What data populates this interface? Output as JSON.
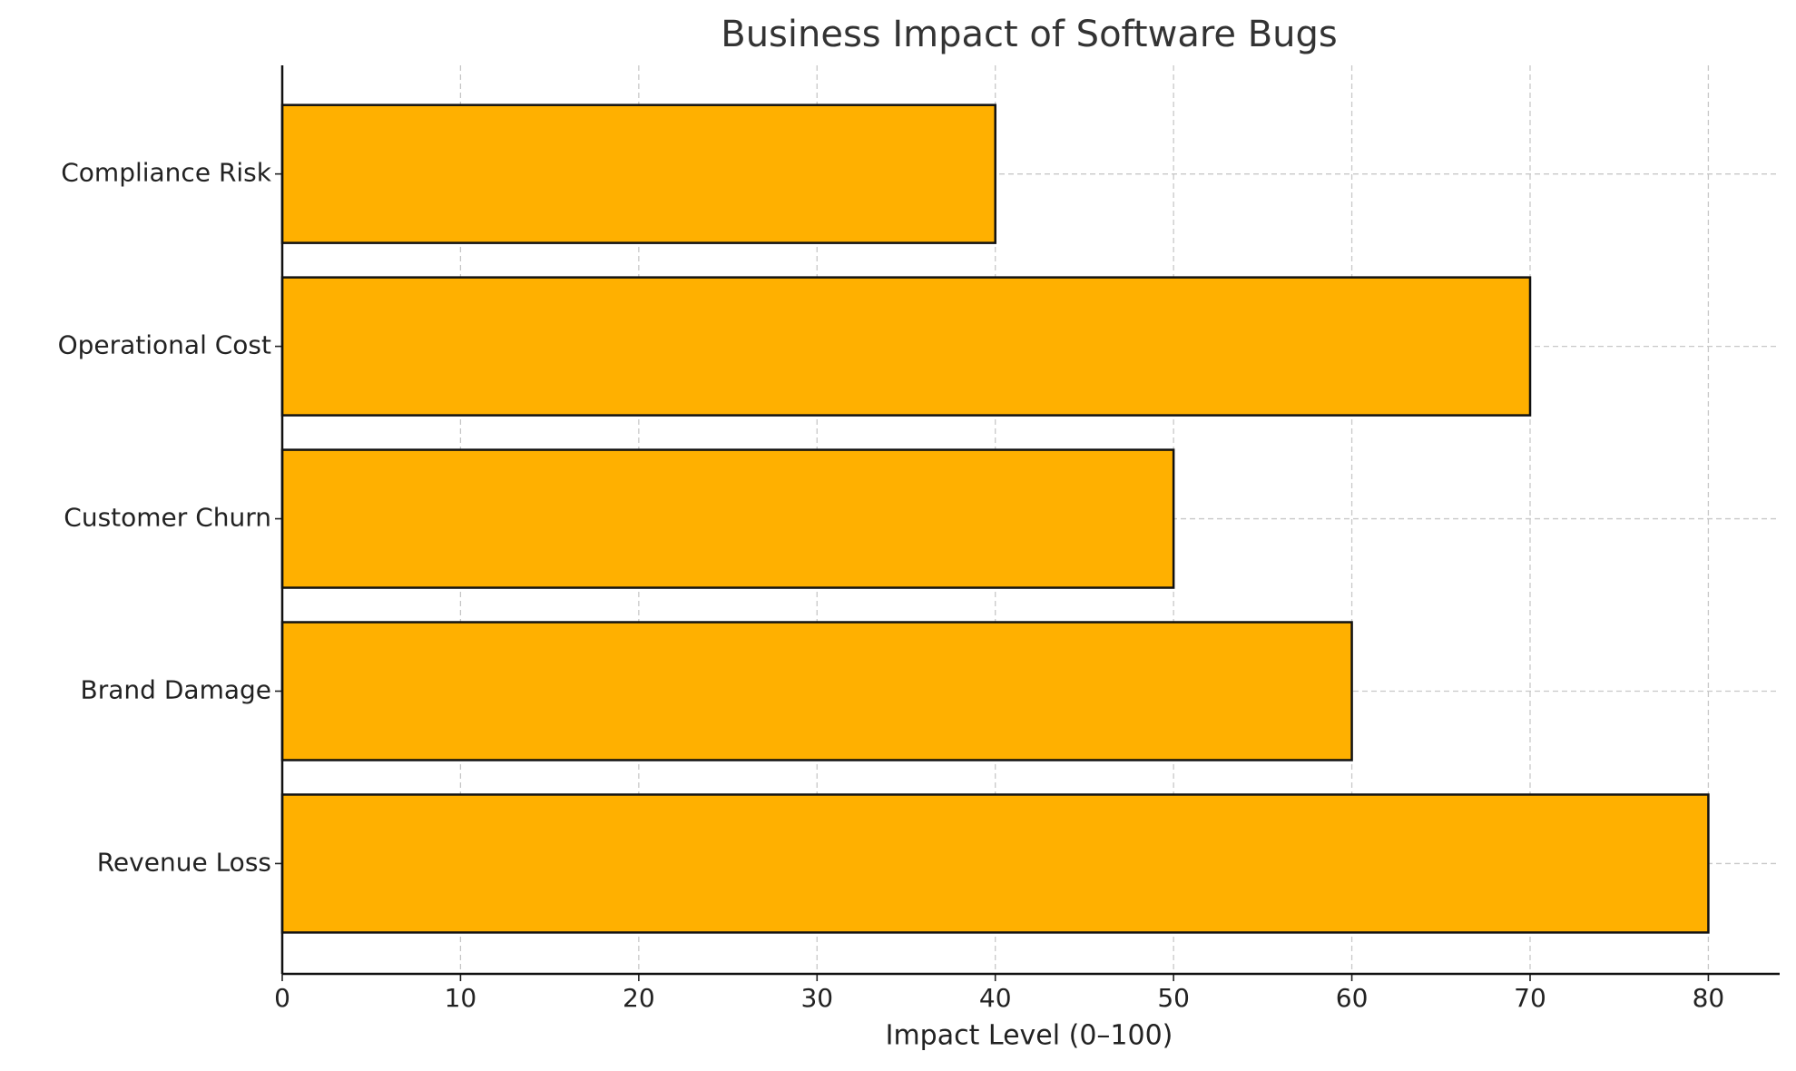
{
  "chart_data": {
    "type": "barh",
    "title": "Business Impact of Software Bugs",
    "xlabel": "Impact Level (0–100)",
    "categories": [
      "Revenue Loss",
      "Brand Damage",
      "Customer Churn",
      "Operational Cost",
      "Compliance Risk"
    ],
    "values": [
      80,
      60,
      50,
      70,
      40
    ],
    "color": "#ffb000",
    "xlim": [
      0,
      84
    ],
    "xticks": [
      0,
      10,
      20,
      30,
      40,
      50,
      60,
      70,
      80
    ],
    "grid": true
  }
}
